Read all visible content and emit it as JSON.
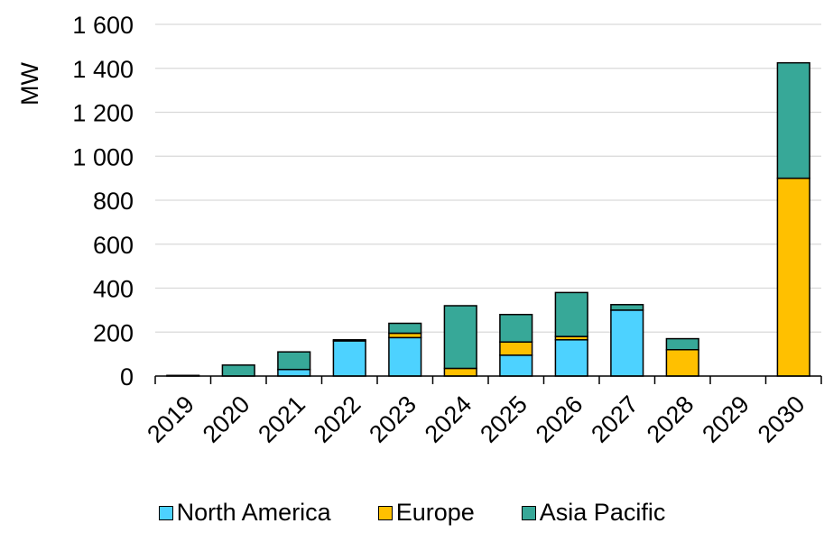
{
  "chart_data": {
    "type": "bar",
    "stacked": true,
    "title": "",
    "xlabel": "",
    "ylabel": "MW",
    "ylim": [
      0,
      1600
    ],
    "yticks": [
      0,
      200,
      400,
      600,
      800,
      1000,
      1200,
      1400,
      1600
    ],
    "ytick_labels": [
      "0",
      "200",
      "400",
      "600",
      "800",
      "1 000",
      "1 200",
      "1 400",
      "1 600"
    ],
    "grid": true,
    "legend_position": "bottom",
    "categories": [
      "2019",
      "2020",
      "2021",
      "2022",
      "2023",
      "2024",
      "2025",
      "2026",
      "2027",
      "2028",
      "2029",
      "2030"
    ],
    "series": [
      {
        "name": "North America",
        "color": "#4dd2ff",
        "values": [
          0,
          0,
          30,
          160,
          175,
          0,
          95,
          165,
          300,
          0,
          0,
          0
        ]
      },
      {
        "name": "Europe",
        "color": "#ffc000",
        "values": [
          0,
          0,
          0,
          0,
          20,
          35,
          60,
          15,
          0,
          120,
          0,
          900
        ]
      },
      {
        "name": "Asia Pacific",
        "color": "#37a898",
        "values": [
          3,
          50,
          80,
          5,
          45,
          285,
          125,
          200,
          25,
          50,
          0,
          525
        ]
      }
    ]
  }
}
